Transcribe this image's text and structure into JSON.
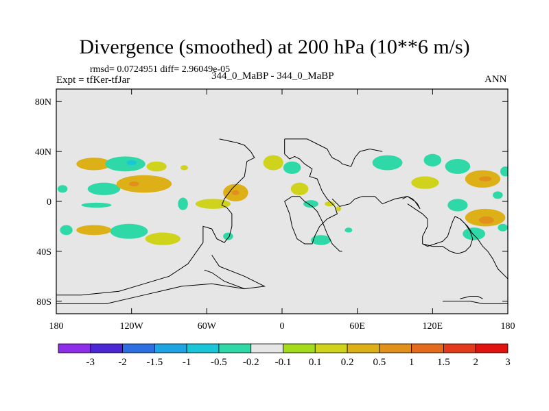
{
  "header": {
    "title": "Divergence (smoothed) at 200 hPa (10**6 m/s)",
    "stats": "rmsd= 0.0724951 diff= 2.96049e-05",
    "experiment": "Expt = tfKer-tfJar",
    "runs": "344_0_MaBP - 344_0_MaBP",
    "season": "ANN"
  },
  "colors": {
    "background_field": "#e6e6e6",
    "coastline": "#000000"
  },
  "chart_data": {
    "type": "heatmap",
    "title": "Divergence (smoothed) at 200 hPa (10**6 m/s)",
    "projection": "cylindrical-equidistant",
    "xlim": [
      -180,
      180
    ],
    "ylim": [
      -90,
      90
    ],
    "x_ticks": [
      {
        "value": -180,
        "label": "180"
      },
      {
        "value": -120,
        "label": "120W"
      },
      {
        "value": -60,
        "label": "60W"
      },
      {
        "value": 0,
        "label": "0"
      },
      {
        "value": 60,
        "label": "60E"
      },
      {
        "value": 120,
        "label": "120E"
      },
      {
        "value": 180,
        "label": "180"
      }
    ],
    "y_ticks": [
      {
        "value": 80,
        "label": "80N"
      },
      {
        "value": 40,
        "label": "40N"
      },
      {
        "value": 0,
        "label": "0"
      },
      {
        "value": -40,
        "label": "40S"
      },
      {
        "value": -80,
        "label": "80S"
      }
    ],
    "colorbar": {
      "placement": "bottom",
      "colors": [
        "#8f2eea",
        "#4a26d4",
        "#2d6fe0",
        "#1ea4e2",
        "#19c6d8",
        "#2ed9a7",
        "#e6e6e6",
        "#a4dc1c",
        "#cfd31b",
        "#ddb017",
        "#e0901b",
        "#e46a1d",
        "#e43a1c",
        "#e0130f"
      ],
      "levels": [
        "-3",
        "-2",
        "-1.5",
        "-1",
        "-0.5",
        "-0.2",
        "-0.1",
        "0.1",
        "0.2",
        "0.5",
        "1",
        "1.5",
        "2",
        "3"
      ]
    },
    "features": [
      {
        "lon": -150,
        "lat": 30,
        "rx": 14,
        "ry": 5,
        "level": 0.3
      },
      {
        "lon": -125,
        "lat": 30,
        "rx": 16,
        "ry": 6,
        "level": -0.3
      },
      {
        "lon": -120,
        "lat": 31,
        "rx": 4,
        "ry": 2,
        "level": -0.6
      },
      {
        "lon": -100,
        "lat": 28,
        "rx": 8,
        "ry": 4,
        "level": 0.15
      },
      {
        "lon": -78,
        "lat": 27,
        "rx": 3,
        "ry": 2,
        "level": 0.15
      },
      {
        "lon": -142,
        "lat": 10,
        "rx": 13,
        "ry": 5,
        "level": -0.3
      },
      {
        "lon": -110,
        "lat": 14,
        "rx": 22,
        "ry": 7,
        "level": 0.3
      },
      {
        "lon": -118,
        "lat": 14,
        "rx": 4,
        "ry": 2,
        "level": 0.6
      },
      {
        "lon": -148,
        "lat": -3,
        "rx": 12,
        "ry": 2,
        "level": -0.3
      },
      {
        "lon": -175,
        "lat": 10,
        "rx": 4,
        "ry": 3,
        "level": -0.3
      },
      {
        "lon": -79,
        "lat": -2,
        "rx": 4,
        "ry": 5,
        "level": -0.3
      },
      {
        "lon": -55,
        "lat": -2,
        "rx": 14,
        "ry": 4,
        "level": 0.15
      },
      {
        "lon": -37,
        "lat": 7,
        "rx": 10,
        "ry": 7,
        "level": 0.3
      },
      {
        "lon": -37,
        "lat": 7,
        "rx": 3,
        "ry": 2,
        "level": 0.6
      },
      {
        "lon": -150,
        "lat": -23,
        "rx": 14,
        "ry": 4,
        "level": 0.3
      },
      {
        "lon": -122,
        "lat": -24,
        "rx": 15,
        "ry": 6,
        "level": -0.3
      },
      {
        "lon": -95,
        "lat": -30,
        "rx": 14,
        "ry": 5,
        "level": 0.15
      },
      {
        "lon": -172,
        "lat": -23,
        "rx": 5,
        "ry": 4,
        "level": -0.3
      },
      {
        "lon": -43,
        "lat": -28,
        "rx": 4,
        "ry": 3,
        "level": -0.3
      },
      {
        "lon": -7,
        "lat": 31,
        "rx": 8,
        "ry": 6,
        "level": 0.15
      },
      {
        "lon": 8,
        "lat": 27,
        "rx": 7,
        "ry": 5,
        "level": -0.3
      },
      {
        "lon": 14,
        "lat": 10,
        "rx": 7,
        "ry": 5,
        "level": 0.15
      },
      {
        "lon": 23,
        "lat": -2,
        "rx": 6,
        "ry": 3,
        "level": -0.3
      },
      {
        "lon": 38,
        "lat": -2,
        "rx": 4,
        "ry": 2,
        "level": 0.15
      },
      {
        "lon": 31,
        "lat": -31,
        "rx": 8,
        "ry": 4,
        "level": -0.3
      },
      {
        "lon": 53,
        "lat": -23,
        "rx": 3,
        "ry": 2,
        "level": -0.3
      },
      {
        "lon": 45,
        "lat": -6,
        "rx": 2,
        "ry": 2,
        "level": 0.15
      },
      {
        "lon": 84,
        "lat": 31,
        "rx": 12,
        "ry": 6,
        "level": -0.3
      },
      {
        "lon": 114,
        "lat": 15,
        "rx": 11,
        "ry": 5,
        "level": 0.15
      },
      {
        "lon": 120,
        "lat": 33,
        "rx": 7,
        "ry": 5,
        "level": -0.3
      },
      {
        "lon": 140,
        "lat": 28,
        "rx": 10,
        "ry": 6,
        "level": -0.3
      },
      {
        "lon": 160,
        "lat": 18,
        "rx": 14,
        "ry": 7,
        "level": 0.3
      },
      {
        "lon": 162,
        "lat": 18,
        "rx": 5,
        "ry": 2,
        "level": 0.7
      },
      {
        "lon": 178,
        "lat": 24,
        "rx": 4,
        "ry": 4,
        "level": -0.3
      },
      {
        "lon": 140,
        "lat": -3,
        "rx": 8,
        "ry": 5,
        "level": -0.3
      },
      {
        "lon": 162,
        "lat": -13,
        "rx": 16,
        "ry": 7,
        "level": 0.3
      },
      {
        "lon": 163,
        "lat": -15,
        "rx": 6,
        "ry": 3,
        "level": 0.6
      },
      {
        "lon": 153,
        "lat": -26,
        "rx": 9,
        "ry": 5,
        "level": -0.3
      },
      {
        "lon": 176,
        "lat": -21,
        "rx": 4,
        "ry": 3,
        "level": -0.3
      },
      {
        "lon": 172,
        "lat": 5,
        "rx": 4,
        "ry": 3,
        "level": -0.3
      }
    ],
    "coastlines": [
      [
        [
          -180,
          -75
        ],
        [
          -160,
          -75
        ],
        [
          -130,
          -72
        ],
        [
          -110,
          -66
        ],
        [
          -90,
          -60
        ],
        [
          -75,
          -50
        ],
        [
          -63,
          -33
        ],
        [
          -63,
          -20
        ],
        [
          -56,
          -22
        ],
        [
          -52,
          -30
        ],
        [
          -46,
          -33
        ],
        [
          -42,
          -28
        ],
        [
          -40,
          -20
        ],
        [
          -40,
          -10
        ],
        [
          -44,
          -5
        ],
        [
          -48,
          -3
        ],
        [
          -46,
          2
        ],
        [
          -40,
          10
        ],
        [
          -36,
          14
        ],
        [
          -30,
          20
        ],
        [
          -28,
          32
        ],
        [
          -22,
          35
        ],
        [
          -25,
          40
        ],
        [
          -30,
          45
        ],
        [
          -36,
          47
        ],
        [
          -50,
          50
        ]
      ],
      [
        [
          -56,
          -43
        ],
        [
          -50,
          -52
        ],
        [
          -30,
          -60
        ],
        [
          -14,
          -68
        ],
        [
          -30,
          -70
        ],
        [
          -56,
          -66
        ],
        [
          -80,
          -68
        ],
        [
          -110,
          -75
        ],
        [
          -140,
          -82
        ],
        [
          -160,
          -82
        ],
        [
          -180,
          -82
        ]
      ],
      [
        [
          -62,
          -55
        ],
        [
          -56,
          -57
        ],
        [
          -46,
          -64
        ],
        [
          -30,
          -70
        ]
      ],
      [
        [
          2,
          50
        ],
        [
          20,
          50
        ],
        [
          30,
          45
        ],
        [
          36,
          42
        ],
        [
          38,
          38
        ],
        [
          40,
          35
        ],
        [
          46,
          32
        ],
        [
          48,
          30
        ],
        [
          55,
          28
        ],
        [
          58,
          35
        ],
        [
          62,
          40
        ],
        [
          70,
          42
        ],
        [
          80,
          40
        ]
      ],
      [
        [
          2,
          50
        ],
        [
          2,
          38
        ],
        [
          6,
          34
        ],
        [
          10,
          36
        ],
        [
          14,
          34
        ],
        [
          18,
          30
        ],
        [
          24,
          26
        ],
        [
          22,
          20
        ],
        [
          28,
          18
        ],
        [
          32,
          8
        ],
        [
          36,
          2
        ],
        [
          42,
          -4
        ],
        [
          44,
          -10
        ],
        [
          36,
          -14
        ],
        [
          30,
          -20
        ],
        [
          26,
          -28
        ],
        [
          24,
          -34
        ],
        [
          18,
          -34
        ],
        [
          12,
          -30
        ],
        [
          8,
          -20
        ],
        [
          6,
          -10
        ],
        [
          4,
          -5
        ],
        [
          2,
          0
        ],
        [
          8,
          4
        ],
        [
          14,
          4
        ],
        [
          18,
          0
        ],
        [
          24,
          -4
        ],
        [
          28,
          -8
        ],
        [
          32,
          -16
        ],
        [
          36,
          -26
        ],
        [
          40,
          -34
        ],
        [
          46,
          -40
        ],
        [
          48,
          -40
        ]
      ],
      [
        [
          40,
          2
        ],
        [
          46,
          -4
        ],
        [
          54,
          -2
        ],
        [
          58,
          2
        ],
        [
          64,
          4
        ],
        [
          74,
          4
        ],
        [
          80,
          -2
        ],
        [
          90,
          2
        ],
        [
          100,
          4
        ],
        [
          104,
          2
        ],
        [
          108,
          -2
        ],
        [
          110,
          -6
        ],
        [
          106,
          0
        ],
        [
          100,
          4
        ],
        [
          96,
          2
        ]
      ],
      [
        [
          100,
          -2
        ],
        [
          106,
          -6
        ],
        [
          112,
          -10
        ],
        [
          116,
          -14
        ],
        [
          116,
          -20
        ],
        [
          112,
          -28
        ],
        [
          112,
          -34
        ],
        [
          116,
          -36
        ],
        [
          122,
          -34
        ],
        [
          128,
          -32
        ],
        [
          132,
          -28
        ],
        [
          134,
          -22
        ],
        [
          136,
          -16
        ],
        [
          138,
          -12
        ],
        [
          142,
          -14
        ],
        [
          146,
          -18
        ],
        [
          150,
          -24
        ],
        [
          152,
          -30
        ],
        [
          150,
          -36
        ],
        [
          146,
          -40
        ],
        [
          140,
          -42
        ],
        [
          134,
          -40
        ],
        [
          128,
          -36
        ],
        [
          120,
          -36
        ],
        [
          112,
          -34
        ]
      ],
      [
        [
          142,
          -14
        ],
        [
          148,
          -20
        ],
        [
          152,
          -26
        ],
        [
          156,
          -30
        ],
        [
          160,
          -36
        ],
        [
          164,
          -40
        ],
        [
          168,
          -46
        ],
        [
          172,
          -54
        ],
        [
          178,
          -60
        ],
        [
          180,
          -62
        ]
      ],
      [
        [
          128,
          -80
        ],
        [
          150,
          -80
        ],
        [
          160,
          -82
        ],
        [
          180,
          -82
        ]
      ],
      [
        [
          142,
          -78
        ],
        [
          150,
          -76
        ],
        [
          156,
          -76
        ],
        [
          160,
          -78
        ]
      ]
    ]
  }
}
